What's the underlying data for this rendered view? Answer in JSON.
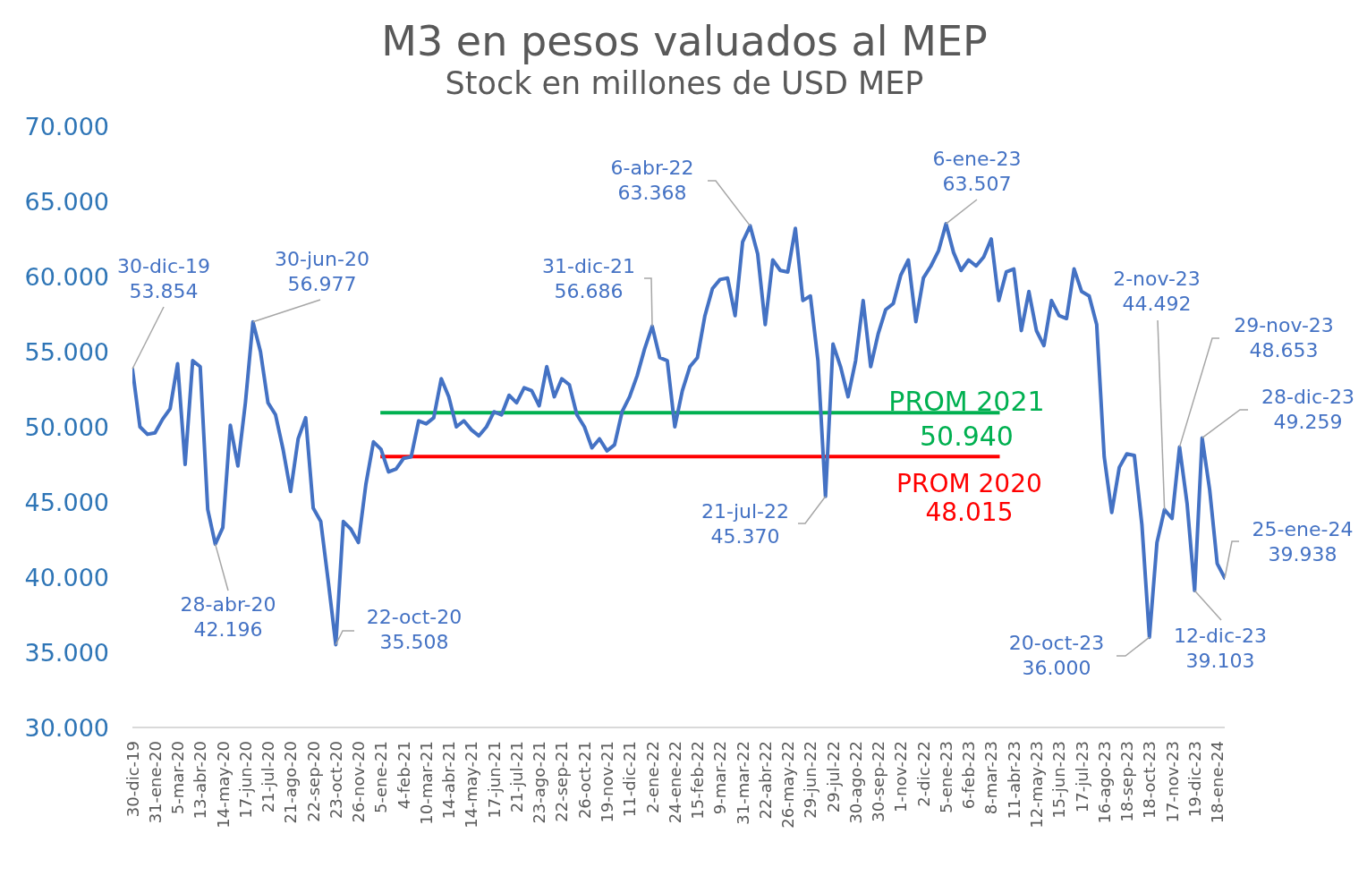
{
  "chart_data": {
    "type": "line",
    "title": "M3 en pesos valuados al MEP",
    "subtitle": "Stock en millones de USD MEP",
    "categories": [
      "30-dic-19",
      null,
      null,
      "31-ene-20",
      null,
      null,
      "5-mar-20",
      null,
      null,
      "13-abr-20",
      null,
      null,
      "14-may-20",
      null,
      null,
      "17-jun-20",
      null,
      null,
      "21-jul-20",
      null,
      null,
      "21-ago-20",
      null,
      null,
      "22-sep-20",
      null,
      null,
      "23-oct-20",
      null,
      null,
      "26-nov-20",
      null,
      null,
      "5-ene-21",
      null,
      null,
      "4-feb-21",
      null,
      null,
      "10-mar-21",
      null,
      null,
      "14-abr-21",
      null,
      null,
      "14-may-21",
      null,
      null,
      "17-jun-21",
      null,
      null,
      "21-jul-21",
      null,
      null,
      "23-ago-21",
      null,
      null,
      "22-sep-21",
      null,
      null,
      "26-oct-21",
      null,
      null,
      "19-nov-21",
      null,
      null,
      "11-dic-21",
      null,
      null,
      "2-ene-22",
      null,
      null,
      "24-ene-22",
      null,
      null,
      "15-feb-22",
      null,
      null,
      "9-mar-22",
      null,
      null,
      "31-mar-22",
      null,
      null,
      "22-abr-22",
      null,
      null,
      "26-may-22",
      null,
      null,
      "29-jun-22",
      null,
      null,
      "29-jul-22",
      null,
      null,
      "30-ago-22",
      null,
      null,
      "30-sep-22",
      null,
      null,
      "1-nov-22",
      null,
      null,
      "2-dic-22",
      null,
      null,
      "5-ene-23",
      null,
      null,
      "6-feb-23",
      null,
      null,
      "8-mar-23",
      null,
      null,
      "11-abr-23",
      null,
      null,
      "12-may-23",
      null,
      null,
      "15-jun-23",
      null,
      null,
      "17-jul-23",
      null,
      null,
      "16-ago-23",
      null,
      null,
      "18-sep-23",
      null,
      null,
      "18-oct-23",
      null,
      null,
      "17-nov-23",
      null,
      null,
      "19-dic-23",
      null,
      null,
      "18-ene-24",
      null
    ],
    "series": [
      {
        "color": "#4472c4",
        "values": [
          53854,
          50000,
          49500,
          49600,
          50500,
          51200,
          54200,
          47500,
          54400,
          54000,
          44500,
          42196,
          43300,
          50100,
          47400,
          51600,
          56977,
          55000,
          51600,
          50800,
          48500,
          45700,
          49200,
          50600,
          44600,
          43700,
          39700,
          35508,
          43700,
          43200,
          42300,
          46200,
          49000,
          48500,
          47000,
          47200,
          47900,
          48000,
          50400,
          50200,
          50600,
          53200,
          52000,
          50000,
          50400,
          49800,
          49400,
          50000,
          51000,
          50800,
          52100,
          51600,
          52600,
          52400,
          51400,
          54000,
          52000,
          53200,
          52800,
          50800,
          50000,
          48600,
          49200,
          48400,
          48800,
          51000,
          52000,
          53400,
          55200,
          56686,
          54600,
          54400,
          50000,
          52400,
          54000,
          54600,
          57400,
          59200,
          59800,
          59900,
          57400,
          62300,
          63368,
          61500,
          56800,
          61100,
          60400,
          60300,
          63200,
          58400,
          58700,
          54400,
          45370,
          55500,
          54000,
          52000,
          54400,
          58400,
          54000,
          56200,
          57800,
          58200,
          60100,
          61100,
          57000,
          59900,
          60700,
          61700,
          63507,
          61600,
          60400,
          61100,
          60700,
          61300,
          62500,
          58400,
          60300,
          60500,
          56400,
          59000,
          56400,
          55400,
          58400,
          57400,
          57200,
          60500,
          59000,
          58700,
          56800,
          48000,
          44300,
          47300,
          48200,
          48100,
          43500,
          36000,
          42300,
          44492,
          43900,
          48653,
          44900,
          39103,
          49259,
          45800,
          40900,
          39938
        ],
        "value_labels": [
          "30-dic-19\n53.854",
          null,
          null,
          null,
          null,
          null,
          null,
          null,
          null,
          null,
          null,
          "28-abr-20\n42.196",
          null,
          null,
          null,
          null,
          "30-jun-20\n56.977",
          null,
          null,
          null,
          null,
          null,
          null,
          null,
          null,
          null,
          null,
          "22-oct-20\n35.508",
          null,
          null,
          null,
          null,
          null,
          null,
          null,
          null,
          null,
          null,
          null,
          null,
          null,
          null,
          null,
          null,
          null,
          null,
          null,
          null,
          null,
          null,
          null,
          null,
          null,
          null,
          null,
          null,
          null,
          null,
          null,
          null,
          null,
          null,
          null,
          null,
          null,
          null,
          null,
          null,
          null,
          "31-dic-21\n56.686",
          null,
          null,
          null,
          null,
          null,
          null,
          null,
          null,
          null,
          null,
          null,
          null,
          "6-abr-22\n63.368",
          null,
          null,
          null,
          null,
          null,
          null,
          null,
          null,
          null,
          "21-jul-22\n45.370",
          null,
          null,
          null,
          null,
          null,
          null,
          null,
          null,
          null,
          null,
          null,
          null,
          null,
          null,
          null,
          "6-ene-23\n63.507",
          null,
          null,
          null,
          null,
          null,
          null,
          null,
          null,
          null,
          null,
          null,
          null,
          null,
          null,
          null,
          null,
          null,
          null,
          null,
          null,
          null,
          null,
          null,
          null,
          null,
          null,
          "20-oct-23\n36.000",
          null,
          "2-nov-23\n44.492",
          null,
          "29-nov-23\n48.653",
          null,
          "12-dic-23\n39.103",
          "28-dic-23\n49.259",
          null,
          null,
          "25-ene-24\n39.938"
        ]
      }
    ],
    "ylim": [
      30000,
      70000
    ],
    "yticks": [
      {
        "value": 30000,
        "label": "30.000"
      },
      {
        "value": 35000,
        "label": "35.000"
      },
      {
        "value": 40000,
        "label": "40.000"
      },
      {
        "value": 45000,
        "label": "45.000"
      },
      {
        "value": 50000,
        "label": "50.000"
      },
      {
        "value": 55000,
        "label": "55.000"
      },
      {
        "value": 60000,
        "label": "60.000"
      },
      {
        "value": 65000,
        "label": "65.000"
      },
      {
        "value": 70000,
        "label": "70.000"
      }
    ],
    "marker": "none",
    "line_style": "solid",
    "ref_lines": [
      {
        "axis": "y",
        "value": 50940,
        "label": "PROM 2021\n50.940",
        "color": "#00b050"
      },
      {
        "axis": "y",
        "value": 48015,
        "label": "PROM 2020\n48.015",
        "color": "#ff0000"
      }
    ]
  }
}
